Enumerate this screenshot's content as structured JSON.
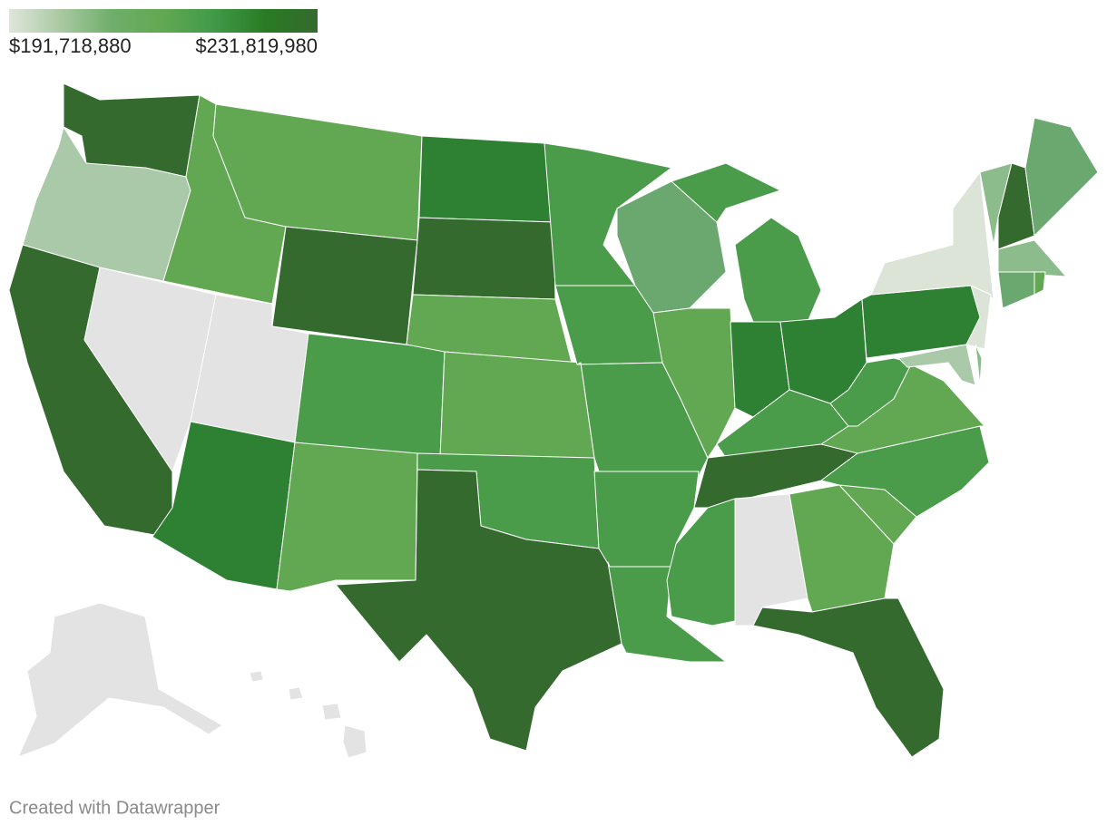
{
  "legend": {
    "min": {
      "value": 191718880,
      "label": "$191,718,880"
    },
    "max": {
      "value": 231819980,
      "label": "$231,819,980"
    },
    "colors": [
      "#dfe6dc",
      "#a9c9a3",
      "#6fae6a",
      "#62a852",
      "#3f9a48",
      "#2a7a24",
      "#356a2f"
    ]
  },
  "footer": "Created with Datawrapper"
}
